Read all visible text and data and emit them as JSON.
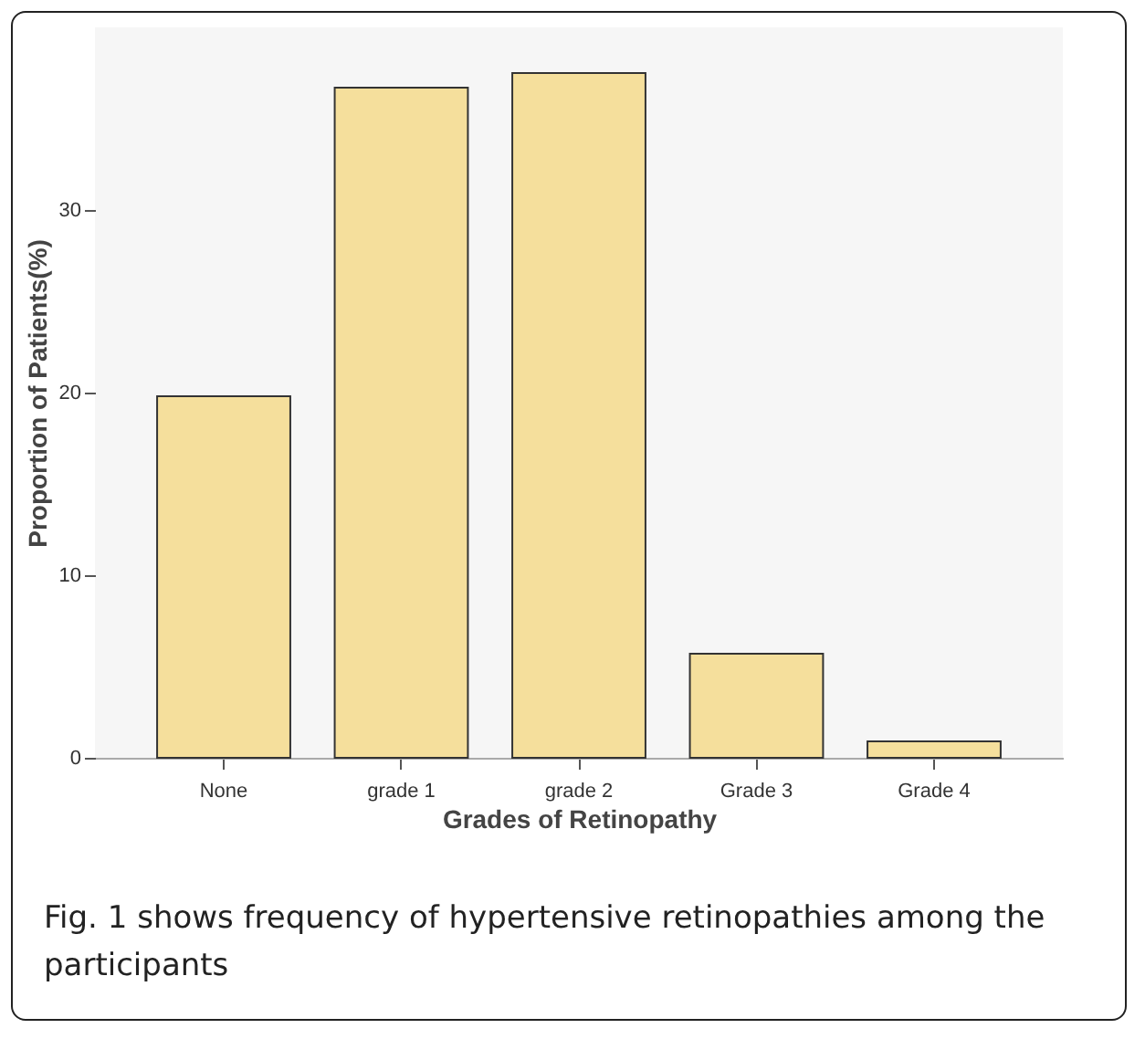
{
  "chart_data": {
    "type": "bar",
    "xlabel": "Grades of Retinopathy",
    "ylabel": "Proportion of Patients(%)",
    "categories": [
      "None",
      "grade 1",
      "grade 2",
      "Grade 3",
      "Grade 4"
    ],
    "values": [
      19.8,
      36.7,
      37.5,
      5.7,
      0.9
    ],
    "color": "#f5df9c",
    "ylim": [
      0,
      40
    ],
    "yticks": [
      0,
      10,
      20,
      30
    ],
    "annotations": [
      "Fig. 1 shows frequency of hypertensive retinopathies among the participants"
    ]
  }
}
